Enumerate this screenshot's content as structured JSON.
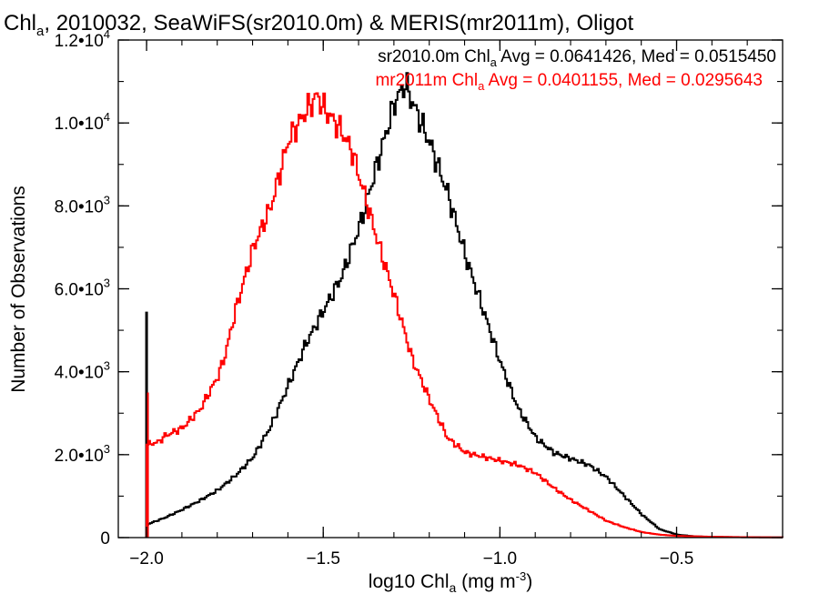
{
  "chart_data": {
    "type": "line",
    "title": {
      "prefix": "Chl",
      "sub": "a",
      "rest": ", 2010032, SeaWiFS(sr2010.0m) & MERIS(mr2011m), Oligot"
    },
    "xlabel": {
      "prefix": "log10 Chl",
      "sub": "a",
      "mid": " (mg m",
      "sup": "-3",
      "end": ")"
    },
    "ylabel": "Number of Observations",
    "xlim": [
      -2.08,
      -0.2
    ],
    "ylim": [
      0,
      12000
    ],
    "xticks": [
      {
        "value": -2.0,
        "label": "−2.0"
      },
      {
        "value": -1.5,
        "label": "−1.5"
      },
      {
        "value": -1.0,
        "label": "−1.0"
      },
      {
        "value": -0.5,
        "label": "−0.5"
      }
    ],
    "yticks": [
      {
        "value": 0,
        "mant": "0",
        "exp": ""
      },
      {
        "value": 2000,
        "mant": "2.0•10",
        "exp": "3"
      },
      {
        "value": 4000,
        "mant": "4.0•10",
        "exp": "3"
      },
      {
        "value": 6000,
        "mant": "6.0•10",
        "exp": "3"
      },
      {
        "value": 8000,
        "mant": "8.0•10",
        "exp": "3"
      },
      {
        "value": 10000,
        "mant": "1.0•10",
        "exp": "4"
      },
      {
        "value": 12000,
        "mant": "1.2•10",
        "exp": "4"
      }
    ],
    "series": [
      {
        "name": "sr2010.0m",
        "color": "#000000",
        "legend": {
          "pre": "sr2010.0m Chl",
          "sub": "a",
          "post": " Avg = 0.0641426, Med = 0.0515450"
        },
        "spike": {
          "x": -2.0,
          "y": 5450
        },
        "points": [
          [
            -2.0,
            320
          ],
          [
            -1.95,
            480
          ],
          [
            -1.9,
            680
          ],
          [
            -1.85,
            900
          ],
          [
            -1.8,
            1150
          ],
          [
            -1.75,
            1500
          ],
          [
            -1.7,
            1950
          ],
          [
            -1.65,
            2700
          ],
          [
            -1.6,
            3700
          ],
          [
            -1.55,
            4700
          ],
          [
            -1.5,
            5500
          ],
          [
            -1.45,
            6300
          ],
          [
            -1.4,
            7500
          ],
          [
            -1.35,
            9000
          ],
          [
            -1.3,
            10500
          ],
          [
            -1.27,
            10950
          ],
          [
            -1.25,
            10500
          ],
          [
            -1.2,
            9500
          ],
          [
            -1.15,
            8300
          ],
          [
            -1.1,
            6800
          ],
          [
            -1.05,
            5500
          ],
          [
            -1.0,
            4200
          ],
          [
            -0.95,
            3100
          ],
          [
            -0.9,
            2400
          ],
          [
            -0.85,
            2050
          ],
          [
            -0.8,
            1900
          ],
          [
            -0.75,
            1750
          ],
          [
            -0.7,
            1450
          ],
          [
            -0.65,
            1000
          ],
          [
            -0.6,
            550
          ],
          [
            -0.55,
            200
          ],
          [
            -0.5,
            70
          ],
          [
            -0.45,
            30
          ],
          [
            -0.4,
            15
          ],
          [
            -0.3,
            8
          ],
          [
            -0.2,
            5
          ]
        ]
      },
      {
        "name": "mr2011m",
        "color": "#ff0000",
        "legend": {
          "pre": "mr2011m Chl",
          "sub": "a",
          "post": " Avg = 0.0401155, Med = 0.0295643"
        },
        "spike": {
          "x": -2.0,
          "y": 3500
        },
        "points": [
          [
            -2.0,
            2250
          ],
          [
            -1.97,
            2300
          ],
          [
            -1.95,
            2450
          ],
          [
            -1.9,
            2650
          ],
          [
            -1.85,
            3100
          ],
          [
            -1.8,
            3900
          ],
          [
            -1.78,
            4400
          ],
          [
            -1.75,
            5500
          ],
          [
            -1.7,
            7000
          ],
          [
            -1.65,
            8000
          ],
          [
            -1.6,
            9600
          ],
          [
            -1.55,
            10300
          ],
          [
            -1.52,
            10650
          ],
          [
            -1.5,
            10350
          ],
          [
            -1.45,
            9800
          ],
          [
            -1.42,
            9300
          ],
          [
            -1.4,
            8700
          ],
          [
            -1.35,
            7200
          ],
          [
            -1.3,
            5800
          ],
          [
            -1.25,
            4300
          ],
          [
            -1.2,
            3300
          ],
          [
            -1.15,
            2400
          ],
          [
            -1.1,
            2050
          ],
          [
            -1.05,
            1950
          ],
          [
            -1.0,
            1850
          ],
          [
            -0.95,
            1750
          ],
          [
            -0.9,
            1550
          ],
          [
            -0.85,
            1200
          ],
          [
            -0.8,
            900
          ],
          [
            -0.75,
            650
          ],
          [
            -0.7,
            400
          ],
          [
            -0.65,
            250
          ],
          [
            -0.6,
            130
          ],
          [
            -0.55,
            70
          ],
          [
            -0.5,
            40
          ],
          [
            -0.4,
            20
          ],
          [
            -0.3,
            10
          ],
          [
            -0.2,
            5
          ]
        ]
      }
    ]
  }
}
